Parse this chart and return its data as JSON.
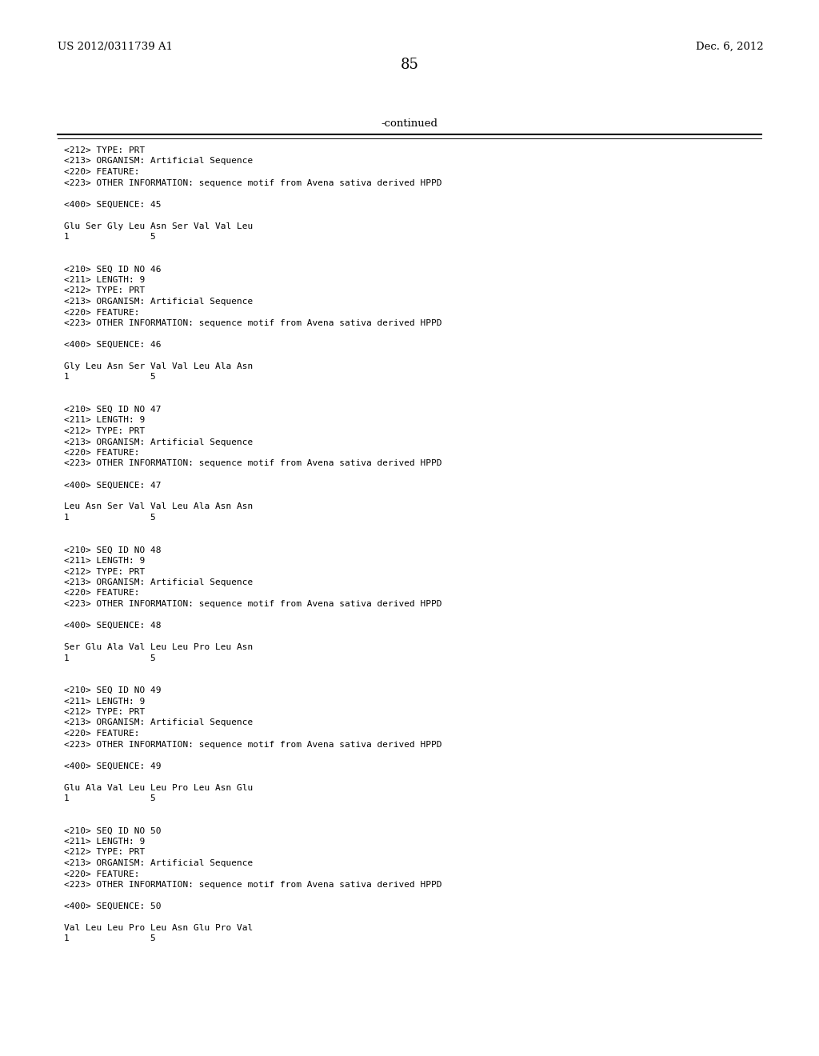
{
  "background_color": "#ffffff",
  "header_left": "US 2012/0311739 A1",
  "header_right": "Dec. 6, 2012",
  "page_number": "85",
  "continued_label": "-continued",
  "header_fontsize": 9.5,
  "page_num_fontsize": 13,
  "continued_fontsize": 9.5,
  "mono_fontsize": 8.0,
  "content": [
    "<212> TYPE: PRT",
    "<213> ORGANISM: Artificial Sequence",
    "<220> FEATURE:",
    "<223> OTHER INFORMATION: sequence motif from Avena sativa derived HPPD",
    "",
    "<400> SEQUENCE: 45",
    "",
    "Glu Ser Gly Leu Asn Ser Val Val Leu",
    "1               5",
    "",
    "",
    "<210> SEQ ID NO 46",
    "<211> LENGTH: 9",
    "<212> TYPE: PRT",
    "<213> ORGANISM: Artificial Sequence",
    "<220> FEATURE:",
    "<223> OTHER INFORMATION: sequence motif from Avena sativa derived HPPD",
    "",
    "<400> SEQUENCE: 46",
    "",
    "Gly Leu Asn Ser Val Val Leu Ala Asn",
    "1               5",
    "",
    "",
    "<210> SEQ ID NO 47",
    "<211> LENGTH: 9",
    "<212> TYPE: PRT",
    "<213> ORGANISM: Artificial Sequence",
    "<220> FEATURE:",
    "<223> OTHER INFORMATION: sequence motif from Avena sativa derived HPPD",
    "",
    "<400> SEQUENCE: 47",
    "",
    "Leu Asn Ser Val Val Leu Ala Asn Asn",
    "1               5",
    "",
    "",
    "<210> SEQ ID NO 48",
    "<211> LENGTH: 9",
    "<212> TYPE: PRT",
    "<213> ORGANISM: Artificial Sequence",
    "<220> FEATURE:",
    "<223> OTHER INFORMATION: sequence motif from Avena sativa derived HPPD",
    "",
    "<400> SEQUENCE: 48",
    "",
    "Ser Glu Ala Val Leu Leu Pro Leu Asn",
    "1               5",
    "",
    "",
    "<210> SEQ ID NO 49",
    "<211> LENGTH: 9",
    "<212> TYPE: PRT",
    "<213> ORGANISM: Artificial Sequence",
    "<220> FEATURE:",
    "<223> OTHER INFORMATION: sequence motif from Avena sativa derived HPPD",
    "",
    "<400> SEQUENCE: 49",
    "",
    "Glu Ala Val Leu Leu Pro Leu Asn Glu",
    "1               5",
    "",
    "",
    "<210> SEQ ID NO 50",
    "<211> LENGTH: 9",
    "<212> TYPE: PRT",
    "<213> ORGANISM: Artificial Sequence",
    "<220> FEATURE:",
    "<223> OTHER INFORMATION: sequence motif from Avena sativa derived HPPD",
    "",
    "<400> SEQUENCE: 50",
    "",
    "Val Leu Leu Pro Leu Asn Glu Pro Val",
    "1               5"
  ]
}
